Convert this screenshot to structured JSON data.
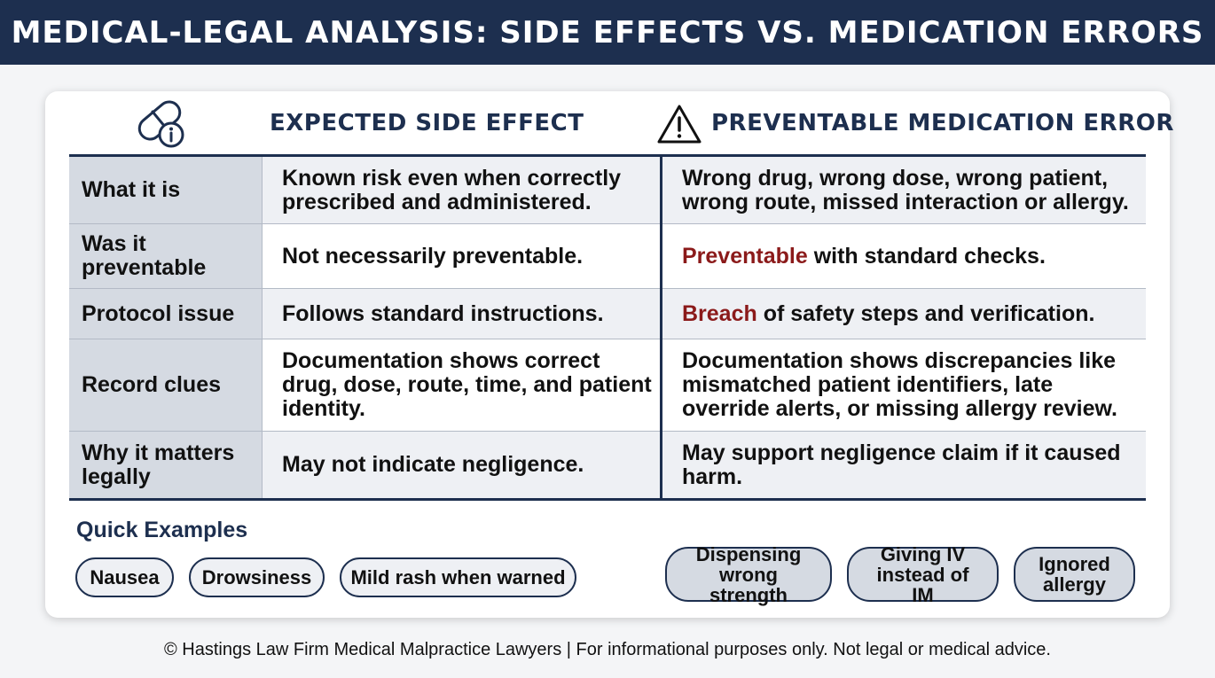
{
  "banner": {
    "title": "MEDICAL-LEGAL ANALYSIS: SIDE EFFECTS VS. MEDICATION ERRORS"
  },
  "columns": {
    "left_heading": "EXPECTED SIDE EFFECT",
    "right_heading": "PREVENTABLE MEDICATION ERROR",
    "left_icon": "pill-info-icon",
    "right_icon": "warning-triangle-icon"
  },
  "rows": [
    {
      "label": "What it is",
      "side_effect": "Known risk even when correctly prescribed and administered.",
      "error_accent": "",
      "error": "Wrong drug, wrong dose, wrong patient, wrong route, missed interaction or allergy."
    },
    {
      "label": "Was it preventable",
      "side_effect": "Not necessarily preventable.",
      "error_accent": "Preventable",
      "error": " with standard checks."
    },
    {
      "label": "Protocol issue",
      "side_effect": "Follows standard instructions.",
      "error_accent": "Breach",
      "error": " of safety steps and verification."
    },
    {
      "label": "Record clues",
      "side_effect": "Documentation shows correct drug, dose, route, time, and patient identity.",
      "error_accent": "",
      "error": "Documentation shows discrepancies like mismatched patient identifiers, late override alerts, or missing allergy review."
    },
    {
      "label": "Why it matters legally",
      "side_effect": "May not indicate negligence.",
      "error_accent": "",
      "error": "May support negligence claim if it caused harm."
    }
  ],
  "quick_examples": {
    "title": "Quick Examples",
    "side_effect_examples": [
      "Nausea",
      "Drowsiness",
      "Mild rash when warned"
    ],
    "error_examples": [
      "Dispensing wrong strength",
      "Giving IV instead of IM",
      "Ignored allergy"
    ]
  },
  "colors": {
    "navy": "#1d2f4f",
    "accent_red": "#8b1a1a",
    "label_gray": "#d5dae2"
  },
  "footer": "© Hastings Law Firm Medical Malpractice Lawyers | For informational purposes only. Not legal or medical advice."
}
